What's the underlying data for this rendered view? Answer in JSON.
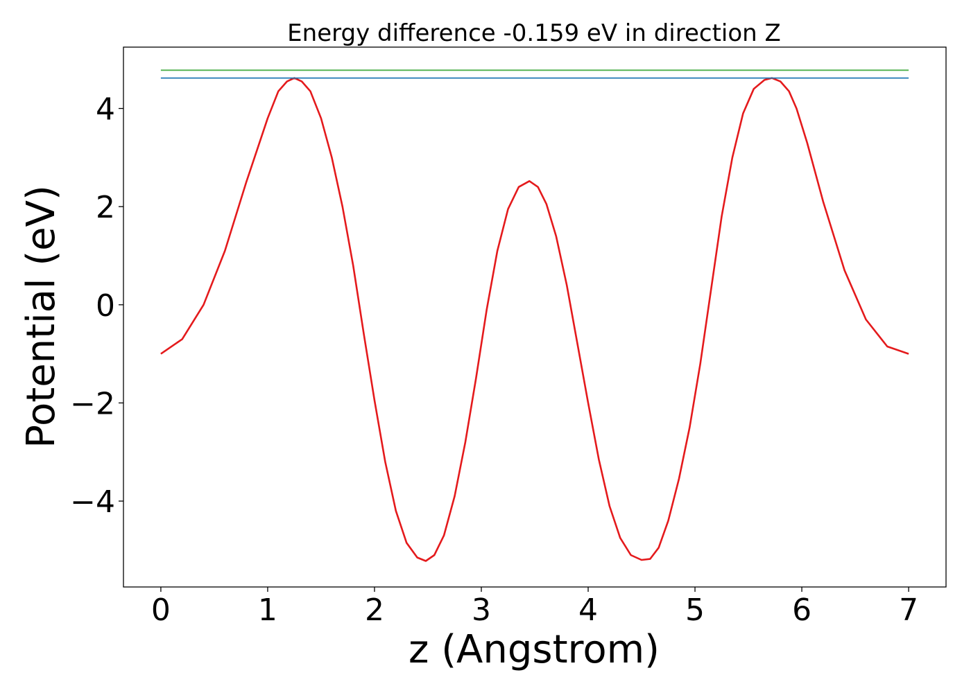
{
  "chart_data": {
    "type": "line",
    "title": "Energy difference -0.159 eV in direction Z",
    "xlabel": "z (Angstrom)",
    "ylabel": "Potential (eV)",
    "xlim": [
      -0.35,
      7.35
    ],
    "ylim": [
      -5.75,
      5.25
    ],
    "xticks": [
      0,
      1,
      2,
      3,
      4,
      5,
      6,
      7
    ],
    "xtick_labels": [
      "0",
      "1",
      "2",
      "3",
      "4",
      "5",
      "6",
      "7"
    ],
    "yticks": [
      -4,
      -2,
      0,
      2,
      4
    ],
    "ytick_labels": [
      "−4",
      "−2",
      "0",
      "2",
      "4"
    ],
    "grid": false,
    "legend": "none",
    "series": [
      {
        "color": "#e41a1c",
        "x": [
          0.0,
          0.2,
          0.4,
          0.6,
          0.8,
          1.0,
          1.1,
          1.18,
          1.25,
          1.32,
          1.4,
          1.5,
          1.6,
          1.7,
          1.8,
          1.9,
          2.0,
          2.1,
          2.2,
          2.3,
          2.4,
          2.48,
          2.56,
          2.65,
          2.75,
          2.85,
          2.95,
          3.05,
          3.15,
          3.25,
          3.35,
          3.45,
          3.53,
          3.61,
          3.7,
          3.8,
          3.9,
          4.0,
          4.1,
          4.2,
          4.3,
          4.4,
          4.5,
          4.58,
          4.66,
          4.75,
          4.85,
          4.95,
          5.05,
          5.15,
          5.25,
          5.35,
          5.45,
          5.55,
          5.65,
          5.72,
          5.8,
          5.88,
          5.95,
          6.05,
          6.2,
          6.4,
          6.6,
          6.8,
          7.0
        ],
        "y": [
          -1.0,
          -0.7,
          0.0,
          1.1,
          2.5,
          3.8,
          4.35,
          4.55,
          4.62,
          4.55,
          4.35,
          3.8,
          3.0,
          2.0,
          0.8,
          -0.6,
          -1.95,
          -3.2,
          -4.2,
          -4.85,
          -5.15,
          -5.22,
          -5.1,
          -4.7,
          -3.9,
          -2.8,
          -1.5,
          -0.1,
          1.1,
          1.95,
          2.4,
          2.52,
          2.4,
          2.05,
          1.4,
          0.4,
          -0.8,
          -2.0,
          -3.15,
          -4.1,
          -4.75,
          -5.1,
          -5.2,
          -5.18,
          -4.95,
          -4.4,
          -3.55,
          -2.5,
          -1.2,
          0.3,
          1.8,
          3.0,
          3.9,
          4.4,
          4.58,
          4.62,
          4.55,
          4.35,
          4.0,
          3.3,
          2.1,
          0.7,
          -0.3,
          -0.85,
          -1.0
        ]
      },
      {
        "color": "#1f77b4",
        "x": [
          0,
          7
        ],
        "y": [
          4.62,
          4.62
        ]
      },
      {
        "color": "#4daf4a",
        "x": [
          0,
          7
        ],
        "y": [
          4.78,
          4.78
        ]
      }
    ]
  }
}
